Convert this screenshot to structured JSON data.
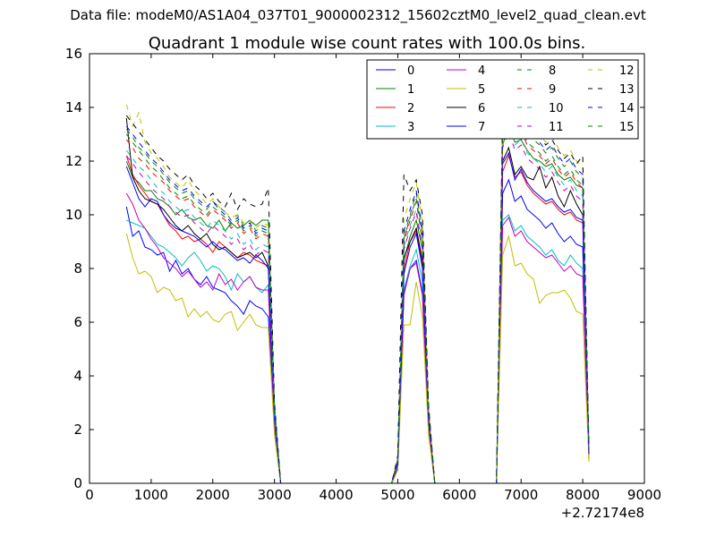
{
  "figure": {
    "suptitle": "Data file: modeM0/AS1A04_037T01_9000002312_15602cztM0_level2_quad_clean.evt"
  },
  "chart_data": {
    "type": "line",
    "title": "Quadrant 1 module wise count rates with 100.0s bins.",
    "xlabel": "",
    "ylabel": "",
    "x_offset_label": "+2.72174e8",
    "xlim": [
      0,
      9000
    ],
    "ylim": [
      0,
      16
    ],
    "x_ticks": [
      0,
      1000,
      2000,
      3000,
      4000,
      5000,
      6000,
      7000,
      8000,
      9000
    ],
    "y_ticks": [
      0,
      2,
      4,
      6,
      8,
      10,
      12,
      14,
      16
    ],
    "grid": false,
    "legend_location": "top-right",
    "legend_columns": 4,
    "x": [
      600,
      700,
      800,
      900,
      1000,
      1100,
      1200,
      1300,
      1400,
      1500,
      1600,
      1700,
      1800,
      1900,
      2000,
      2100,
      2200,
      2300,
      2400,
      2500,
      2600,
      2700,
      2800,
      2900,
      3000,
      3100,
      3200,
      4900,
      5000,
      5100,
      5200,
      5300,
      5400,
      5500,
      5600,
      5700,
      6600,
      6700,
      6800,
      6900,
      7000,
      7100,
      7200,
      7300,
      7400,
      7500,
      7600,
      7700,
      7800,
      7900,
      8000,
      8100
    ],
    "series": [
      {
        "name": "0",
        "color": "#0000ff",
        "dash": "solid",
        "values": [
          10.3,
          9.2,
          9.4,
          8.8,
          8.7,
          8.5,
          8.6,
          7.9,
          8.3,
          7.8,
          8.0,
          7.6,
          7.4,
          7.7,
          7.3,
          7.2,
          7.1,
          6.8,
          6.6,
          6.3,
          6.8,
          6.6,
          6.5,
          6.2,
          2.3,
          0,
          0,
          0,
          0.5,
          7.1,
          8.0,
          8.3,
          7.1,
          2.2,
          0,
          0,
          0,
          10.8,
          11.3,
          10.5,
          10.7,
          10.2,
          10.0,
          9.8,
          9.5,
          9.7,
          9.3,
          9.0,
          9.2,
          8.9,
          8.8,
          1.0
        ]
      },
      {
        "name": "1",
        "color": "#008000",
        "dash": "solid",
        "values": [
          12.0,
          11.4,
          11.2,
          10.9,
          10.9,
          10.6,
          10.5,
          10.3,
          10.0,
          10.2,
          9.9,
          9.8,
          9.9,
          9.6,
          9.5,
          9.8,
          9.4,
          9.7,
          9.5,
          9.6,
          9.8,
          9.6,
          9.8,
          9.8,
          2.9,
          0,
          0,
          0,
          0.8,
          8.3,
          9.2,
          9.8,
          8.7,
          2.5,
          0,
          0,
          0,
          12.6,
          13.3,
          12.7,
          12.8,
          12.4,
          12.1,
          12.0,
          11.8,
          11.9,
          11.5,
          11.3,
          11.4,
          11.1,
          11.0,
          1.2
        ]
      },
      {
        "name": "2",
        "color": "#ff0000",
        "dash": "solid",
        "values": [
          12.2,
          11.5,
          11.1,
          10.8,
          10.5,
          10.4,
          10.0,
          9.6,
          9.4,
          9.1,
          9.2,
          9.0,
          9.1,
          8.9,
          8.6,
          9.0,
          8.8,
          8.6,
          8.4,
          8.6,
          8.5,
          8.3,
          8.2,
          8.1,
          2.5,
          0,
          0,
          0,
          0.7,
          8.0,
          9.0,
          9.4,
          8.2,
          2.4,
          0,
          0,
          0,
          11.6,
          12.2,
          11.4,
          11.6,
          11.1,
          10.8,
          10.6,
          10.4,
          10.5,
          10.2,
          10.0,
          10.1,
          9.8,
          9.7,
          1.1
        ]
      },
      {
        "name": "3",
        "color": "#00bfbf",
        "dash": "solid",
        "values": [
          9.8,
          9.7,
          9.6,
          9.5,
          9.2,
          8.9,
          8.8,
          8.6,
          8.4,
          8.1,
          8.4,
          8.6,
          8.3,
          7.9,
          8.1,
          8.0,
          7.7,
          7.2,
          7.8,
          7.5,
          7.7,
          7.3,
          7.1,
          7.4,
          2.2,
          0,
          0,
          0,
          0.6,
          7.2,
          8.1,
          8.7,
          7.5,
          2.1,
          0,
          0,
          0,
          9.8,
          10.0,
          9.4,
          9.6,
          9.2,
          9.0,
          8.8,
          8.5,
          8.7,
          8.3,
          8.1,
          8.5,
          8.2,
          8.0,
          0.9
        ]
      },
      {
        "name": "4",
        "color": "#bf00bf",
        "dash": "solid",
        "values": [
          10.8,
          10.4,
          9.8,
          9.5,
          9.1,
          8.8,
          8.4,
          8.2,
          8.0,
          7.7,
          7.9,
          7.6,
          7.3,
          7.5,
          7.2,
          7.8,
          7.4,
          7.6,
          7.2,
          7.5,
          7.7,
          7.3,
          7.2,
          7.2,
          2.1,
          0,
          0,
          0,
          0.6,
          7.0,
          8.0,
          8.2,
          7.0,
          2.0,
          0,
          0,
          0,
          9.6,
          9.9,
          9.2,
          9.4,
          9.0,
          8.8,
          8.6,
          8.4,
          8.5,
          8.2,
          7.9,
          8.1,
          7.8,
          7.7,
          0.9
        ]
      },
      {
        "name": "5",
        "color": "#bfbf00",
        "dash": "solid",
        "values": [
          9.3,
          8.4,
          7.8,
          7.9,
          7.7,
          7.1,
          7.3,
          7.2,
          6.8,
          6.9,
          6.2,
          6.5,
          6.2,
          6.4,
          6.1,
          6.0,
          6.3,
          6.4,
          5.7,
          6.0,
          6.3,
          5.9,
          5.8,
          5.8,
          1.8,
          0,
          0,
          0,
          0.5,
          5.9,
          5.9,
          7.5,
          6.2,
          1.8,
          0,
          0,
          0,
          8.5,
          9.2,
          8.1,
          8.2,
          7.8,
          7.6,
          6.7,
          7.0,
          7.1,
          7.1,
          7.2,
          6.9,
          6.4,
          6.3,
          0.8
        ]
      },
      {
        "name": "6",
        "color": "#000000",
        "dash": "solid",
        "values": [
          13.6,
          11.4,
          10.9,
          10.6,
          10.5,
          10.4,
          10.2,
          9.9,
          9.6,
          9.4,
          9.6,
          9.3,
          9.1,
          9.3,
          8.9,
          8.7,
          8.8,
          8.6,
          8.4,
          8.5,
          8.6,
          8.4,
          8.6,
          8.1,
          2.6,
          0,
          0,
          0,
          0.8,
          8.4,
          9.0,
          9.5,
          8.3,
          2.5,
          0,
          0,
          0,
          12.0,
          12.5,
          11.5,
          11.8,
          11.4,
          11.3,
          11.8,
          11.0,
          11.4,
          10.7,
          10.3,
          10.9,
          10.4,
          10.0,
          1.2
        ]
      },
      {
        "name": "7",
        "color": "#0000ff",
        "dash": "solid",
        "values": [
          11.8,
          11.2,
          10.6,
          10.3,
          10.6,
          10.5,
          10.0,
          9.7,
          9.5,
          9.4,
          9.3,
          9.2,
          9.0,
          8.8,
          9.0,
          8.8,
          8.7,
          8.5,
          8.3,
          8.4,
          8.2,
          8.5,
          8.3,
          8.0,
          2.4,
          0,
          0,
          0,
          0.7,
          7.8,
          8.8,
          9.3,
          8.0,
          2.3,
          0,
          0,
          0,
          11.9,
          12.3,
          11.3,
          11.7,
          11.2,
          10.9,
          10.7,
          10.5,
          10.6,
          10.3,
          10.1,
          10.2,
          9.9,
          9.8,
          1.1
        ]
      },
      {
        "name": "8",
        "color": "#008000",
        "dash": "dash",
        "values": [
          13.2,
          12.9,
          12.5,
          12.3,
          12.0,
          11.8,
          11.5,
          11.2,
          11.0,
          10.8,
          10.9,
          10.6,
          10.4,
          10.2,
          10.5,
          10.3,
          10.1,
          9.8,
          10.0,
          9.6,
          9.8,
          9.4,
          9.6,
          9.5,
          2.8,
          0,
          0,
          0,
          0.9,
          9.2,
          10.0,
          10.8,
          9.3,
          2.7,
          0,
          0,
          0,
          13.4,
          14.0,
          13.3,
          13.5,
          13.0,
          12.8,
          12.6,
          12.3,
          12.5,
          12.1,
          11.8,
          12.0,
          11.6,
          11.4,
          1.3
        ]
      },
      {
        "name": "9",
        "color": "#ff0000",
        "dash": "dash",
        "values": [
          12.8,
          12.5,
          12.1,
          11.9,
          11.6,
          11.4,
          11.2,
          10.9,
          10.7,
          10.5,
          10.6,
          10.3,
          10.1,
          9.9,
          10.2,
          10.0,
          9.8,
          9.5,
          9.7,
          9.3,
          9.5,
          9.1,
          9.3,
          9.2,
          2.7,
          0,
          0,
          0,
          0.9,
          9.0,
          9.8,
          10.5,
          9.0,
          2.6,
          0,
          0,
          0,
          13.0,
          13.6,
          12.9,
          13.1,
          12.6,
          12.4,
          12.2,
          11.9,
          12.1,
          11.7,
          11.4,
          11.6,
          11.2,
          11.0,
          1.3
        ]
      },
      {
        "name": "10",
        "color": "#00bfbf",
        "dash": "dash",
        "values": [
          12.4,
          12.1,
          11.8,
          11.6,
          11.3,
          11.0,
          10.8,
          10.5,
          10.3,
          10.1,
          10.2,
          9.9,
          9.7,
          9.5,
          9.8,
          9.6,
          9.4,
          9.1,
          9.3,
          8.9,
          9.1,
          8.7,
          8.9,
          8.8,
          2.6,
          0,
          0,
          0,
          0.8,
          8.8,
          9.6,
          10.2,
          8.8,
          2.5,
          0,
          0,
          0,
          12.7,
          14.3,
          12.6,
          12.8,
          12.3,
          12.1,
          11.9,
          11.6,
          11.8,
          11.4,
          11.1,
          11.3,
          10.9,
          10.7,
          1.2
        ]
      },
      {
        "name": "11",
        "color": "#bf00bf",
        "dash": "dash",
        "values": [
          12.2,
          11.9,
          11.6,
          11.3,
          11.0,
          10.8,
          10.6,
          10.3,
          10.1,
          9.9,
          10.0,
          9.7,
          9.5,
          9.3,
          9.6,
          9.4,
          9.2,
          8.9,
          9.1,
          8.7,
          8.9,
          8.5,
          8.7,
          8.6,
          2.6,
          0,
          0,
          0,
          0.8,
          8.7,
          9.5,
          10.1,
          8.7,
          2.5,
          0,
          0,
          0,
          12.5,
          13.1,
          12.4,
          12.6,
          12.1,
          11.9,
          11.7,
          11.4,
          11.6,
          11.2,
          10.9,
          11.1,
          10.7,
          10.5,
          1.2
        ]
      },
      {
        "name": "12",
        "color": "#bfbf00",
        "dash": "dash",
        "values": [
          14.1,
          13.3,
          13.8,
          12.7,
          12.3,
          12.1,
          11.8,
          11.4,
          11.2,
          11.0,
          11.3,
          10.9,
          10.7,
          10.4,
          10.6,
          10.3,
          10.1,
          9.9,
          10.0,
          9.7,
          9.8,
          9.5,
          9.7,
          9.6,
          2.9,
          0,
          0,
          0,
          1.0,
          9.8,
          10.6,
          11.2,
          9.7,
          2.8,
          0,
          0,
          0,
          13.9,
          14.4,
          13.7,
          13.9,
          13.4,
          13.2,
          13.0,
          12.7,
          12.9,
          12.5,
          12.2,
          12.4,
          12.0,
          11.8,
          1.4
        ]
      },
      {
        "name": "13",
        "color": "#000000",
        "dash": "dash",
        "values": [
          13.7,
          13.4,
          13.1,
          12.8,
          12.5,
          12.2,
          12.0,
          11.7,
          11.5,
          11.3,
          11.5,
          11.1,
          10.9,
          10.6,
          10.8,
          10.5,
          10.3,
          10.8,
          10.2,
          10.6,
          10.4,
          10.3,
          10.4,
          11.0,
          3.0,
          0,
          0,
          0,
          1.0,
          11.5,
          10.9,
          11.3,
          10.0,
          2.9,
          0,
          0,
          0,
          13.8,
          14.2,
          13.6,
          13.8,
          13.3,
          13.1,
          12.9,
          12.6,
          12.8,
          12.4,
          12.1,
          12.3,
          11.9,
          12.2,
          1.4
        ]
      },
      {
        "name": "14",
        "color": "#0000ff",
        "dash": "dash",
        "values": [
          13.3,
          13.0,
          12.7,
          12.4,
          12.1,
          11.9,
          11.6,
          11.3,
          11.1,
          10.9,
          11.0,
          10.7,
          10.5,
          10.3,
          10.5,
          10.2,
          10.0,
          9.7,
          9.9,
          9.5,
          9.7,
          9.3,
          9.5,
          9.4,
          2.8,
          0,
          0,
          0,
          0.9,
          9.4,
          10.2,
          10.9,
          9.4,
          2.7,
          0,
          0,
          0,
          13.5,
          14.1,
          13.4,
          13.6,
          13.1,
          12.9,
          12.7,
          12.4,
          12.6,
          12.2,
          11.9,
          12.1,
          11.7,
          11.5,
          1.3
        ]
      },
      {
        "name": "15",
        "color": "#008000",
        "dash": "dash",
        "values": [
          13.0,
          12.7,
          12.4,
          12.1,
          11.8,
          11.6,
          11.3,
          11.0,
          10.8,
          10.6,
          10.7,
          10.4,
          10.2,
          10.0,
          10.3,
          10.1,
          9.9,
          9.6,
          9.8,
          9.4,
          9.6,
          9.2,
          9.4,
          9.3,
          2.7,
          0,
          0,
          0,
          0.9,
          9.1,
          9.9,
          10.6,
          9.1,
          2.6,
          0,
          0,
          0,
          13.1,
          13.7,
          13.0,
          13.2,
          12.7,
          12.5,
          12.3,
          12.0,
          12.2,
          11.8,
          11.5,
          11.7,
          11.3,
          11.1,
          1.3
        ]
      }
    ]
  }
}
